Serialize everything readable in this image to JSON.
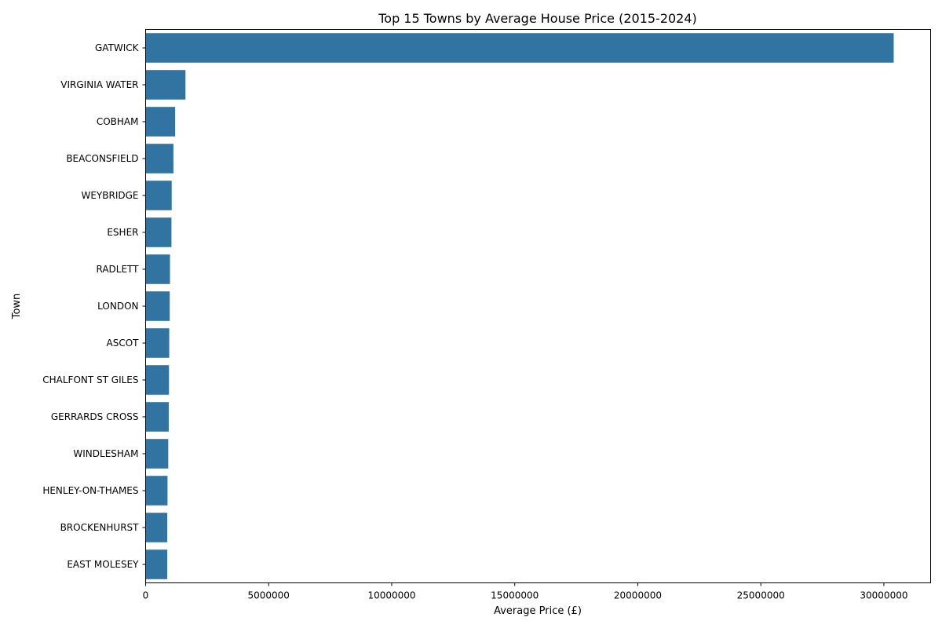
{
  "chart_data": {
    "type": "bar",
    "orientation": "horizontal",
    "title": "Top 15 Towns by Average House Price (2015-2024)",
    "xlabel": "Average Price (£)",
    "ylabel": "Town",
    "xlim": [
      0,
      31900000
    ],
    "xticks": [
      0,
      5000000,
      10000000,
      15000000,
      20000000,
      25000000,
      30000000
    ],
    "xtick_labels": [
      "0",
      "5000000",
      "10000000",
      "15000000",
      "20000000",
      "25000000",
      "30000000"
    ],
    "categories": [
      "GATWICK",
      "VIRGINIA WATER",
      "COBHAM",
      "BEACONSFIELD",
      "WEYBRIDGE",
      "ESHER",
      "RADLETT",
      "LONDON",
      "ASCOT",
      "CHALFONT ST GILES",
      "GERRARDS CROSS",
      "WINDLESHAM",
      "HENLEY-ON-THAMES",
      "BROCKENHURST",
      "EAST MOLESEY"
    ],
    "values": [
      30400000,
      1620000,
      1200000,
      1130000,
      1060000,
      1050000,
      990000,
      980000,
      960000,
      950000,
      940000,
      920000,
      890000,
      880000,
      880000
    ],
    "bar_color": "#3274a1",
    "grid": false,
    "legend": "none"
  }
}
